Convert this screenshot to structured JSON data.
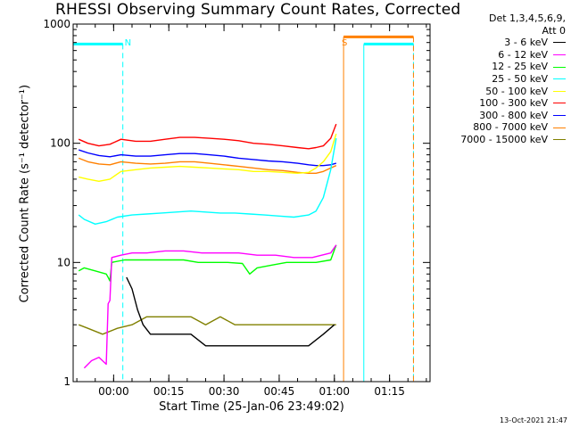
{
  "chart_data": {
    "type": "line",
    "title": "RHESSI Observing Summary Count Rates, Corrected",
    "xlabel": "Start Time (25-Jan-06 23:49:02)",
    "ylabel": "Corrected Count Rate (s⁻¹ detector⁻¹)",
    "yscale": "log",
    "ylim": [
      1,
      1000
    ],
    "xlim_minutes_from_start": [
      0,
      97
    ],
    "x_tick_minutes": [
      11,
      26,
      41,
      56,
      71,
      86
    ],
    "x_tick_labels": [
      "00:00",
      "00:15",
      "00:30",
      "00:45",
      "01:00",
      "01:15"
    ],
    "y_tick_values": [
      1,
      10,
      100,
      1000
    ],
    "y_tick_labels": [
      "1",
      "10",
      "100",
      "1000"
    ],
    "legend_header": [
      "Det 1,3,4,5,6,9,",
      "Att 0"
    ],
    "legend_position": "top-right",
    "series": [
      {
        "name": "3 - 6 keV",
        "color": "#000000",
        "x": [
          14.5,
          16,
          17.5,
          19,
          21,
          24,
          28,
          32,
          36,
          40,
          44,
          48,
          52,
          56,
          60,
          64,
          68,
          71
        ],
        "values": [
          7.5,
          6,
          4,
          3,
          2.5,
          2.5,
          2.5,
          2.5,
          2,
          2,
          2,
          2,
          2,
          2,
          2,
          2,
          2.5,
          3
        ]
      },
      {
        "name": "6 - 12 keV",
        "color": "#ff00ff",
        "x": [
          3,
          5,
          7,
          9,
          9.5,
          10,
          10.5,
          13,
          16,
          20,
          25,
          30,
          35,
          40,
          45,
          50,
          55,
          60,
          65,
          70,
          71.5
        ],
        "values": [
          1.3,
          1.5,
          1.6,
          1.4,
          4.5,
          4.8,
          11,
          11.5,
          12,
          12,
          12.5,
          12.5,
          12,
          12,
          12,
          11.5,
          11.5,
          11,
          11,
          12,
          14
        ]
      },
      {
        "name": "12 - 25 keV",
        "color": "#00ff00",
        "x": [
          1.5,
          3,
          6,
          9,
          9.5,
          10,
          10.5,
          14,
          18,
          22,
          26,
          30,
          34,
          38,
          42,
          46,
          48,
          50,
          54,
          58,
          62,
          66,
          70,
          71.5
        ],
        "values": [
          8.5,
          9,
          8.5,
          8,
          7.5,
          7,
          10,
          10.5,
          10.5,
          10.5,
          10.5,
          10.5,
          10,
          10,
          10,
          9.8,
          8,
          9,
          9.5,
          10,
          10,
          10,
          10.5,
          14
        ]
      },
      {
        "name": "25 - 50 keV",
        "color": "#00ffff",
        "x": [
          1.5,
          3,
          6,
          9,
          12,
          16,
          20,
          24,
          28,
          32,
          36,
          40,
          44,
          48,
          52,
          56,
          60,
          64,
          66,
          68,
          70,
          71.5
        ],
        "values": [
          25,
          23,
          21,
          22,
          24,
          25,
          25.5,
          26,
          26.5,
          27,
          26.5,
          26,
          26,
          25.5,
          25,
          24.5,
          24,
          25,
          27,
          35,
          60,
          110
        ]
      },
      {
        "name": "50 - 100 keV",
        "color": "#ffff00",
        "x": [
          1.5,
          4,
          7,
          10,
          13,
          17,
          21,
          25,
          29,
          33,
          37,
          41,
          45,
          49,
          53,
          57,
          61,
          64,
          66,
          68,
          70,
          71.5
        ],
        "values": [
          52,
          50,
          48,
          50,
          58,
          60,
          62,
          63,
          64,
          63,
          62,
          61,
          60,
          58,
          58,
          57,
          56,
          57,
          62,
          70,
          85,
          120
        ]
      },
      {
        "name": "100 - 300 keV",
        "color": "#ff0000",
        "x": [
          1.5,
          4,
          7,
          10,
          13,
          17,
          21,
          25,
          29,
          33,
          37,
          41,
          45,
          49,
          53,
          57,
          61,
          64,
          66,
          68,
          70,
          71.5
        ],
        "values": [
          108,
          100,
          95,
          98,
          108,
          104,
          104,
          108,
          112,
          112,
          110,
          108,
          105,
          100,
          98,
          95,
          92,
          90,
          92,
          95,
          110,
          145
        ]
      },
      {
        "name": "300 - 800 keV",
        "color": "#0000ff",
        "x": [
          1.5,
          4,
          7,
          10,
          13,
          17,
          21,
          25,
          29,
          33,
          37,
          41,
          45,
          49,
          53,
          57,
          61,
          64,
          66,
          68,
          70,
          71.5
        ],
        "values": [
          88,
          83,
          79,
          77,
          80,
          78,
          78,
          80,
          82,
          82,
          80,
          78,
          75,
          73,
          71,
          70,
          68,
          66,
          65,
          65,
          66,
          68
        ]
      },
      {
        "name": "800 - 7000 keV",
        "color": "#ff8000",
        "x": [
          1.5,
          4,
          7,
          10,
          13,
          17,
          21,
          25,
          29,
          33,
          37,
          41,
          45,
          49,
          53,
          57,
          61,
          64,
          66,
          68,
          70,
          71.5
        ],
        "values": [
          75,
          70,
          67,
          66,
          70,
          68,
          67,
          68,
          70,
          70,
          68,
          66,
          64,
          62,
          60,
          59,
          57,
          56,
          56,
          58,
          62,
          65
        ]
      },
      {
        "name": "7000 - 15000 keV",
        "color": "#808000",
        "x": [
          1.5,
          4,
          8,
          12,
          16,
          20,
          24,
          28,
          32,
          36,
          40,
          44,
          48,
          52,
          56,
          60,
          64,
          68,
          71.5
        ],
        "values": [
          3,
          2.8,
          2.5,
          2.8,
          3,
          3.5,
          3.5,
          3.5,
          3.5,
          3,
          3.5,
          3,
          3,
          3,
          3,
          3,
          3,
          3,
          3
        ]
      }
    ],
    "annotations": [
      {
        "text": "N",
        "x_minutes": 13.5,
        "color": "#00ffff"
      },
      {
        "text": "S",
        "x_minutes": 72.5,
        "color": "#ff8000"
      }
    ],
    "flags": [
      {
        "name": "night",
        "color": "#00ffff",
        "intervals": [
          [
            0,
            13.5
          ],
          [
            79,
            92.5
          ]
        ],
        "level": 680
      },
      {
        "name": "saa",
        "color": "#ff8000",
        "intervals": [
          [
            73.5,
            92.5
          ]
        ],
        "level": 780
      }
    ]
  },
  "footer": {
    "timestamp": "13-Oct-2021 21:47"
  }
}
